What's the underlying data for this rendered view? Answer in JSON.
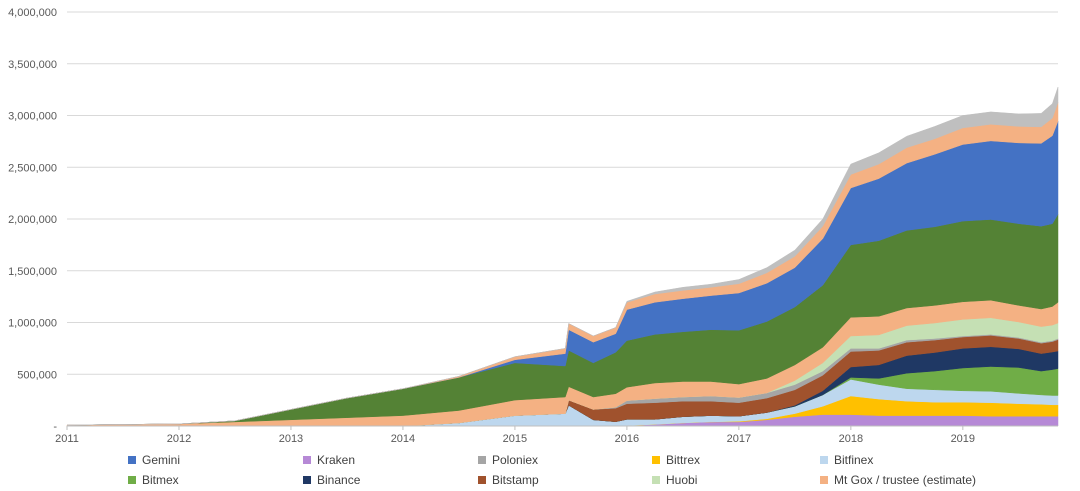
{
  "chart_data": {
    "type": "area",
    "stacked": true,
    "title": "",
    "xlabel": "",
    "ylabel": "",
    "ylim": [
      0,
      4000000
    ],
    "yticks": [
      "-",
      "500,000",
      "1,000,000",
      "1,500,000",
      "2,000,000",
      "2,500,000",
      "3,000,000",
      "3,500,000",
      "4,000,000"
    ],
    "ytick_values": [
      0,
      500000,
      1000000,
      1500000,
      2000000,
      2500000,
      3000000,
      3500000,
      4000000
    ],
    "xlim": [
      2011,
      2019.85
    ],
    "xticks": [
      "2011",
      "2012",
      "2013",
      "2014",
      "2015",
      "2016",
      "2017",
      "2018",
      "2019"
    ],
    "xtick_values": [
      2011,
      2012,
      2013,
      2014,
      2015,
      2016,
      2017,
      2018,
      2019
    ],
    "grid": "horizontal",
    "legend_position": "bottom",
    "x": [
      2011.0,
      2012.0,
      2012.5,
      2013.0,
      2013.5,
      2014.0,
      2014.5,
      2015.0,
      2015.45,
      2015.48,
      2015.7,
      2015.9,
      2016.0,
      2016.25,
      2016.5,
      2016.75,
      2017.0,
      2017.25,
      2017.5,
      2017.75,
      2018.0,
      2018.25,
      2018.5,
      2018.75,
      2019.0,
      2019.25,
      2019.5,
      2019.7,
      2019.8,
      2019.85
    ],
    "series": [
      {
        "name": "Kraken",
        "color": "#b689d6",
        "values": [
          0,
          0,
          0,
          0,
          0,
          0,
          0,
          0,
          0,
          0,
          0,
          2000,
          5000,
          15000,
          30000,
          40000,
          40000,
          60000,
          90000,
          110000,
          110000,
          100000,
          100000,
          100000,
          100000,
          95000,
          95000,
          95000,
          95000,
          95000
        ]
      },
      {
        "name": "Bittrex",
        "color": "#ffc000",
        "values": [
          0,
          0,
          0,
          0,
          0,
          0,
          0,
          0,
          0,
          0,
          0,
          0,
          0,
          0,
          0,
          0,
          5000,
          10000,
          30000,
          80000,
          180000,
          160000,
          140000,
          130000,
          130000,
          130000,
          120000,
          115000,
          110000,
          110000
        ]
      },
      {
        "name": "Bitfinex",
        "color": "#bdd7ee",
        "values": [
          0,
          0,
          0,
          0,
          0,
          0,
          30000,
          100000,
          120000,
          200000,
          60000,
          40000,
          60000,
          50000,
          60000,
          60000,
          50000,
          60000,
          70000,
          110000,
          160000,
          140000,
          120000,
          120000,
          110000,
          110000,
          100000,
          90000,
          90000,
          90000
        ]
      },
      {
        "name": "Bitmex",
        "color": "#70ad47",
        "values": [
          0,
          0,
          0,
          0,
          0,
          0,
          0,
          0,
          0,
          0,
          0,
          0,
          0,
          0,
          0,
          0,
          0,
          0,
          0,
          0,
          20000,
          60000,
          150000,
          180000,
          220000,
          240000,
          250000,
          230000,
          250000,
          260000
        ]
      },
      {
        "name": "Binance",
        "color": "#1f3864",
        "values": [
          0,
          0,
          0,
          0,
          0,
          0,
          0,
          0,
          0,
          0,
          0,
          0,
          0,
          0,
          0,
          0,
          0,
          0,
          10000,
          40000,
          100000,
          130000,
          170000,
          180000,
          190000,
          190000,
          180000,
          170000,
          170000,
          170000
        ]
      },
      {
        "name": "Bitstamp",
        "color": "#a0522d",
        "values": [
          0,
          0,
          0,
          0,
          0,
          0,
          0,
          0,
          0,
          50000,
          100000,
          130000,
          150000,
          160000,
          150000,
          140000,
          130000,
          140000,
          150000,
          150000,
          150000,
          140000,
          130000,
          120000,
          110000,
          110000,
          100000,
          100000,
          100000,
          110000
        ]
      },
      {
        "name": "Poloniex",
        "color": "#a5a5a5",
        "values": [
          0,
          0,
          0,
          0,
          0,
          0,
          0,
          0,
          0,
          0,
          0,
          10000,
          30000,
          40000,
          40000,
          50000,
          50000,
          50000,
          50000,
          40000,
          30000,
          20000,
          20000,
          15000,
          10000,
          10000,
          10000,
          10000,
          10000,
          10000
        ]
      },
      {
        "name": "Huobi",
        "color": "#c5e0b4",
        "values": [
          0,
          0,
          0,
          0,
          0,
          0,
          0,
          0,
          0,
          0,
          0,
          0,
          0,
          0,
          0,
          0,
          0,
          0,
          40000,
          80000,
          120000,
          130000,
          140000,
          150000,
          160000,
          160000,
          150000,
          150000,
          150000,
          150000
        ]
      },
      {
        "name": "Mt Gox / trustee (estimate)",
        "color": "#f4b183",
        "values": [
          10000,
          20000,
          40000,
          60000,
          80000,
          100000,
          120000,
          150000,
          160000,
          130000,
          120000,
          130000,
          130000,
          150000,
          150000,
          140000,
          130000,
          140000,
          150000,
          150000,
          180000,
          180000,
          170000,
          170000,
          170000,
          170000,
          160000,
          170000,
          180000,
          200000
        ]
      },
      {
        "name": "Bitmex",
        "color": "#548235",
        "values": [
          0,
          0,
          10000,
          100000,
          190000,
          260000,
          320000,
          360000,
          300000,
          350000,
          330000,
          400000,
          450000,
          470000,
          480000,
          500000,
          520000,
          550000,
          560000,
          600000,
          700000,
          730000,
          750000,
          760000,
          780000,
          780000,
          790000,
          800000,
          800000,
          850000
        ]
      },
      {
        "name": "Gemini",
        "color": "#4472c4",
        "values": [
          0,
          0,
          0,
          0,
          0,
          0,
          0,
          30000,
          120000,
          200000,
          200000,
          180000,
          300000,
          310000,
          320000,
          330000,
          360000,
          370000,
          380000,
          450000,
          550000,
          600000,
          650000,
          700000,
          740000,
          760000,
          780000,
          800000,
          850000,
          900000
        ]
      },
      {
        "name": "Mt Gox / trustee (estimate)",
        "color": "#f4b183",
        "values": [
          0,
          0,
          0,
          0,
          0,
          0,
          10000,
          30000,
          50000,
          60000,
          60000,
          60000,
          70000,
          80000,
          80000,
          80000,
          90000,
          100000,
          110000,
          120000,
          130000,
          140000,
          150000,
          150000,
          160000,
          160000,
          160000,
          160000,
          170000,
          180000
        ]
      },
      {
        "name": "Poloniex",
        "color": "#bfbfbf",
        "values": [
          0,
          0,
          0,
          0,
          0,
          0,
          0,
          0,
          0,
          0,
          0,
          0,
          10000,
          20000,
          30000,
          30000,
          40000,
          50000,
          60000,
          70000,
          100000,
          110000,
          110000,
          120000,
          120000,
          120000,
          120000,
          130000,
          140000,
          150000
        ]
      }
    ],
    "legend": [
      {
        "label": "Gemini",
        "color": "#4472c4"
      },
      {
        "label": "Kraken",
        "color": "#b689d6"
      },
      {
        "label": "Poloniex",
        "color": "#a5a5a5"
      },
      {
        "label": "Bittrex",
        "color": "#ffc000"
      },
      {
        "label": "Bitfinex",
        "color": "#bdd7ee"
      },
      {
        "label": "Bitmex",
        "color": "#70ad47"
      },
      {
        "label": "Binance",
        "color": "#1f3864"
      },
      {
        "label": "Bitstamp",
        "color": "#a0522d"
      },
      {
        "label": "Huobi",
        "color": "#c5e0b4"
      },
      {
        "label": "Mt Gox / trustee (estimate)",
        "color": "#f4b183"
      }
    ]
  }
}
